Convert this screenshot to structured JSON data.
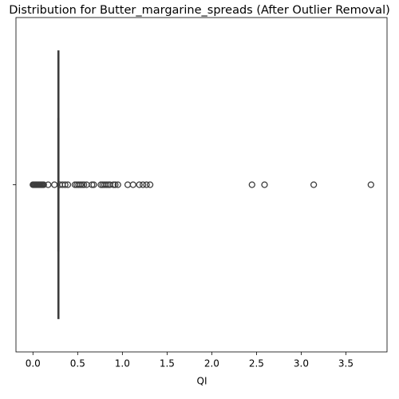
{
  "chart_data": {
    "type": "box",
    "orientation": "horizontal",
    "title": "Distribution for Butter_margarine_spreads (After Outlier Removal)",
    "xlabel": "QI",
    "categories": [
      null
    ],
    "color": "#3c3c3c",
    "boxes": [
      {
        "whislo": 0.28,
        "q1": 0.28,
        "med": 0.285,
        "q3": 0.29,
        "whishi": 0.29,
        "fliers": [
          0.0,
          0.01,
          0.02,
          0.03,
          0.04,
          0.05,
          0.06,
          0.07,
          0.08,
          0.09,
          0.1,
          0.11,
          0.12,
          0.17,
          0.24,
          0.3,
          0.33,
          0.36,
          0.39,
          0.47,
          0.49,
          0.51,
          0.53,
          0.55,
          0.57,
          0.6,
          0.66,
          0.68,
          0.76,
          0.78,
          0.8,
          0.82,
          0.84,
          0.86,
          0.9,
          0.92,
          0.95,
          1.06,
          1.12,
          1.19,
          1.23,
          1.27,
          1.31,
          2.45,
          2.59,
          3.14,
          3.78
        ]
      }
    ],
    "xlim": [
      -0.19,
      3.96
    ],
    "xticks": [
      {
        "value": 0,
        "label": "0.0"
      },
      0.5,
      {
        "value": 1,
        "label": "1.0"
      },
      1.5,
      {
        "value": 2,
        "label": "2.0"
      },
      2.5,
      {
        "value": 3,
        "label": "3.0"
      },
      3.5
    ],
    "grid": false
  }
}
